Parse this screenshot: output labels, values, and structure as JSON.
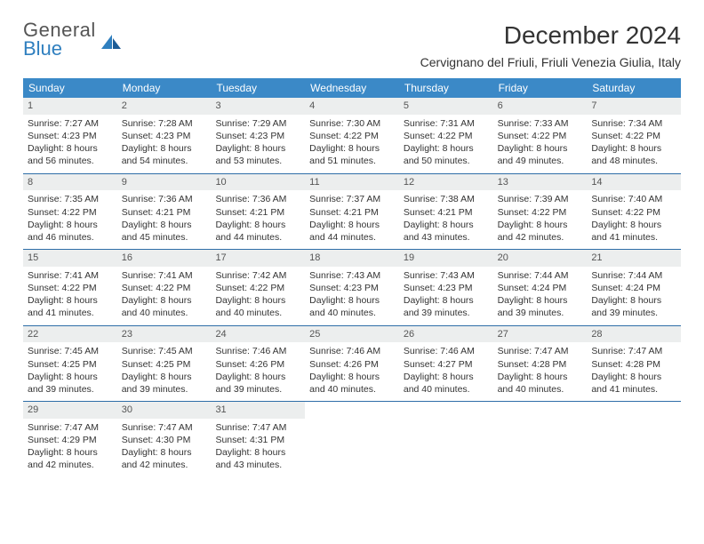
{
  "brand": {
    "word1": "General",
    "word2": "Blue"
  },
  "title": "December 2024",
  "subtitle": "Cervignano del Friuli, Friuli Venezia Giulia, Italy",
  "colors": {
    "header_bg": "#3b89c7",
    "header_text": "#ffffff",
    "week_divider": "#2f6ea8",
    "daynum_bg": "#eceeee",
    "body_text": "#333333",
    "brand_gray": "#555555",
    "brand_blue": "#2f7fbf",
    "page_bg": "#ffffff"
  },
  "layout": {
    "columns": 7,
    "rows": 5,
    "daynum_fontsize": 11,
    "body_fontsize": 10.5,
    "header_fontsize": 12,
    "title_fontsize": 28,
    "subtitle_fontsize": 14
  },
  "weekdays": [
    "Sunday",
    "Monday",
    "Tuesday",
    "Wednesday",
    "Thursday",
    "Friday",
    "Saturday"
  ],
  "weeks": [
    [
      {
        "n": "1",
        "sr": "Sunrise: 7:27 AM",
        "ss": "Sunset: 4:23 PM",
        "d1": "Daylight: 8 hours",
        "d2": "and 56 minutes."
      },
      {
        "n": "2",
        "sr": "Sunrise: 7:28 AM",
        "ss": "Sunset: 4:23 PM",
        "d1": "Daylight: 8 hours",
        "d2": "and 54 minutes."
      },
      {
        "n": "3",
        "sr": "Sunrise: 7:29 AM",
        "ss": "Sunset: 4:23 PM",
        "d1": "Daylight: 8 hours",
        "d2": "and 53 minutes."
      },
      {
        "n": "4",
        "sr": "Sunrise: 7:30 AM",
        "ss": "Sunset: 4:22 PM",
        "d1": "Daylight: 8 hours",
        "d2": "and 51 minutes."
      },
      {
        "n": "5",
        "sr": "Sunrise: 7:31 AM",
        "ss": "Sunset: 4:22 PM",
        "d1": "Daylight: 8 hours",
        "d2": "and 50 minutes."
      },
      {
        "n": "6",
        "sr": "Sunrise: 7:33 AM",
        "ss": "Sunset: 4:22 PM",
        "d1": "Daylight: 8 hours",
        "d2": "and 49 minutes."
      },
      {
        "n": "7",
        "sr": "Sunrise: 7:34 AM",
        "ss": "Sunset: 4:22 PM",
        "d1": "Daylight: 8 hours",
        "d2": "and 48 minutes."
      }
    ],
    [
      {
        "n": "8",
        "sr": "Sunrise: 7:35 AM",
        "ss": "Sunset: 4:22 PM",
        "d1": "Daylight: 8 hours",
        "d2": "and 46 minutes."
      },
      {
        "n": "9",
        "sr": "Sunrise: 7:36 AM",
        "ss": "Sunset: 4:21 PM",
        "d1": "Daylight: 8 hours",
        "d2": "and 45 minutes."
      },
      {
        "n": "10",
        "sr": "Sunrise: 7:36 AM",
        "ss": "Sunset: 4:21 PM",
        "d1": "Daylight: 8 hours",
        "d2": "and 44 minutes."
      },
      {
        "n": "11",
        "sr": "Sunrise: 7:37 AM",
        "ss": "Sunset: 4:21 PM",
        "d1": "Daylight: 8 hours",
        "d2": "and 44 minutes."
      },
      {
        "n": "12",
        "sr": "Sunrise: 7:38 AM",
        "ss": "Sunset: 4:21 PM",
        "d1": "Daylight: 8 hours",
        "d2": "and 43 minutes."
      },
      {
        "n": "13",
        "sr": "Sunrise: 7:39 AM",
        "ss": "Sunset: 4:22 PM",
        "d1": "Daylight: 8 hours",
        "d2": "and 42 minutes."
      },
      {
        "n": "14",
        "sr": "Sunrise: 7:40 AM",
        "ss": "Sunset: 4:22 PM",
        "d1": "Daylight: 8 hours",
        "d2": "and 41 minutes."
      }
    ],
    [
      {
        "n": "15",
        "sr": "Sunrise: 7:41 AM",
        "ss": "Sunset: 4:22 PM",
        "d1": "Daylight: 8 hours",
        "d2": "and 41 minutes."
      },
      {
        "n": "16",
        "sr": "Sunrise: 7:41 AM",
        "ss": "Sunset: 4:22 PM",
        "d1": "Daylight: 8 hours",
        "d2": "and 40 minutes."
      },
      {
        "n": "17",
        "sr": "Sunrise: 7:42 AM",
        "ss": "Sunset: 4:22 PM",
        "d1": "Daylight: 8 hours",
        "d2": "and 40 minutes."
      },
      {
        "n": "18",
        "sr": "Sunrise: 7:43 AM",
        "ss": "Sunset: 4:23 PM",
        "d1": "Daylight: 8 hours",
        "d2": "and 40 minutes."
      },
      {
        "n": "19",
        "sr": "Sunrise: 7:43 AM",
        "ss": "Sunset: 4:23 PM",
        "d1": "Daylight: 8 hours",
        "d2": "and 39 minutes."
      },
      {
        "n": "20",
        "sr": "Sunrise: 7:44 AM",
        "ss": "Sunset: 4:24 PM",
        "d1": "Daylight: 8 hours",
        "d2": "and 39 minutes."
      },
      {
        "n": "21",
        "sr": "Sunrise: 7:44 AM",
        "ss": "Sunset: 4:24 PM",
        "d1": "Daylight: 8 hours",
        "d2": "and 39 minutes."
      }
    ],
    [
      {
        "n": "22",
        "sr": "Sunrise: 7:45 AM",
        "ss": "Sunset: 4:25 PM",
        "d1": "Daylight: 8 hours",
        "d2": "and 39 minutes."
      },
      {
        "n": "23",
        "sr": "Sunrise: 7:45 AM",
        "ss": "Sunset: 4:25 PM",
        "d1": "Daylight: 8 hours",
        "d2": "and 39 minutes."
      },
      {
        "n": "24",
        "sr": "Sunrise: 7:46 AM",
        "ss": "Sunset: 4:26 PM",
        "d1": "Daylight: 8 hours",
        "d2": "and 39 minutes."
      },
      {
        "n": "25",
        "sr": "Sunrise: 7:46 AM",
        "ss": "Sunset: 4:26 PM",
        "d1": "Daylight: 8 hours",
        "d2": "and 40 minutes."
      },
      {
        "n": "26",
        "sr": "Sunrise: 7:46 AM",
        "ss": "Sunset: 4:27 PM",
        "d1": "Daylight: 8 hours",
        "d2": "and 40 minutes."
      },
      {
        "n": "27",
        "sr": "Sunrise: 7:47 AM",
        "ss": "Sunset: 4:28 PM",
        "d1": "Daylight: 8 hours",
        "d2": "and 40 minutes."
      },
      {
        "n": "28",
        "sr": "Sunrise: 7:47 AM",
        "ss": "Sunset: 4:28 PM",
        "d1": "Daylight: 8 hours",
        "d2": "and 41 minutes."
      }
    ],
    [
      {
        "n": "29",
        "sr": "Sunrise: 7:47 AM",
        "ss": "Sunset: 4:29 PM",
        "d1": "Daylight: 8 hours",
        "d2": "and 42 minutes."
      },
      {
        "n": "30",
        "sr": "Sunrise: 7:47 AM",
        "ss": "Sunset: 4:30 PM",
        "d1": "Daylight: 8 hours",
        "d2": "and 42 minutes."
      },
      {
        "n": "31",
        "sr": "Sunrise: 7:47 AM",
        "ss": "Sunset: 4:31 PM",
        "d1": "Daylight: 8 hours",
        "d2": "and 43 minutes."
      },
      {
        "empty": true
      },
      {
        "empty": true
      },
      {
        "empty": true
      },
      {
        "empty": true
      }
    ]
  ]
}
